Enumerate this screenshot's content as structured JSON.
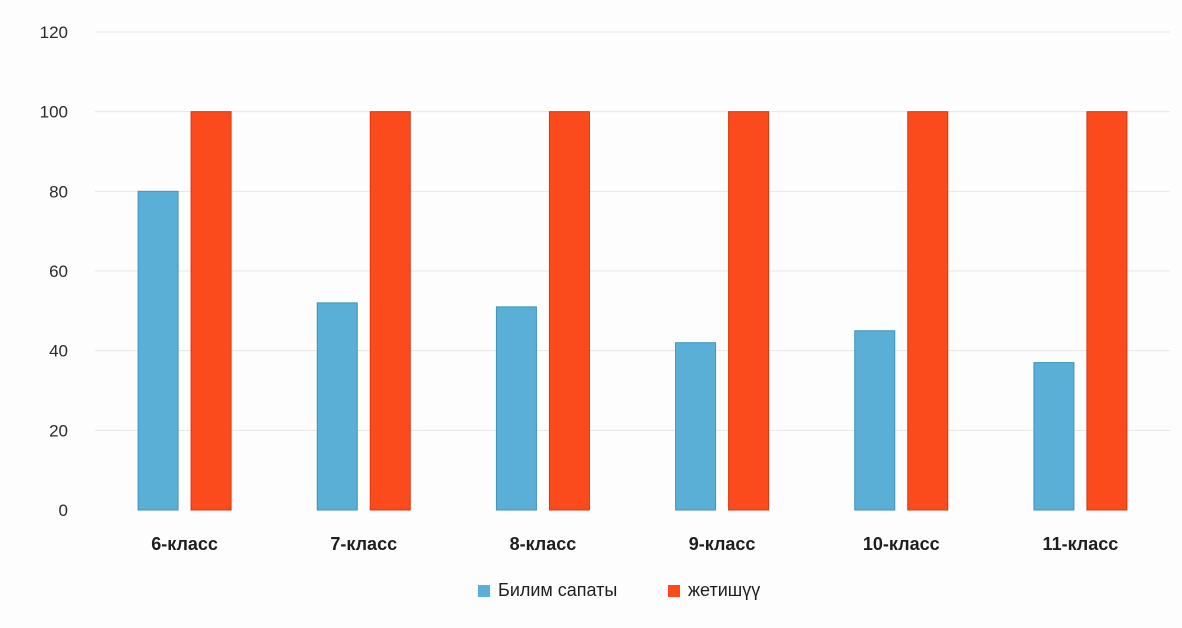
{
  "chart_data": {
    "type": "bar",
    "title": "",
    "xlabel": "",
    "ylabel": "",
    "categories": [
      "6-класс",
      "7-класс",
      "8-класс",
      "9-класс",
      "10-класс",
      "11-класс"
    ],
    "series": [
      {
        "name": "Билим сапаты",
        "color": "#5aafd6",
        "values": [
          80,
          52,
          51,
          42,
          45,
          37
        ]
      },
      {
        "name": "жетишүү",
        "color": "#fb4a1c",
        "values": [
          100,
          100,
          100,
          100,
          100,
          100
        ]
      }
    ],
    "ylim": [
      0,
      120
    ],
    "yticks": [
      0,
      20,
      40,
      60,
      80,
      100,
      120
    ],
    "grid": true,
    "legend": "bottom"
  }
}
